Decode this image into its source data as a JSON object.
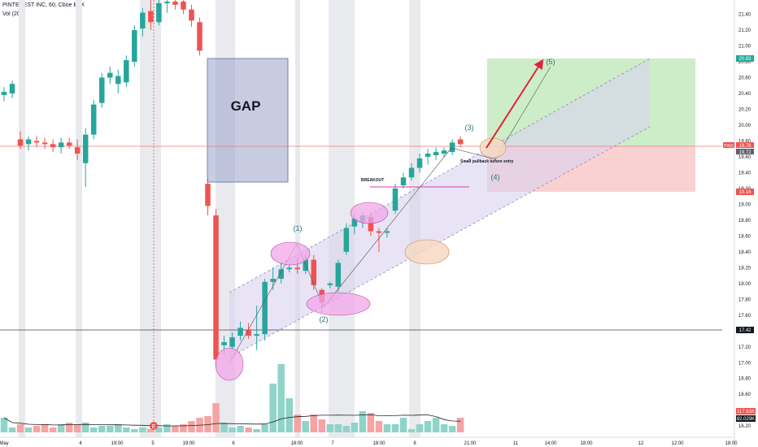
{
  "header": {
    "symbol": "PINTEREST INC, 60, Cboe BZX",
    "indicator": "Vol (20)"
  },
  "colors": {
    "up": "#26a69a",
    "down": "#ef5350",
    "vol_up": "#8fd3c9",
    "vol_down": "#f5a3a3",
    "session_shade": "#e9eaee",
    "gap_fill": "#9aa3cc",
    "channel_fill": "#d9d2ee",
    "target_fill": "#b8e6b0",
    "stop_fill": "#f8c2c2",
    "marker_pink": "#f2a5e8",
    "marker_peach": "#f6d9c2",
    "arrow": "#e0223a",
    "wave_text": "#2a6f7e"
  },
  "annotations": {
    "gap": "GAP",
    "breakout": "BREAKOUT",
    "pullback": "Small pullback before entry",
    "wave1": "(1)",
    "wave2": "(2)",
    "wave3": "(3)",
    "wave4": "(4)",
    "wave5": "(5)",
    "earnings_marker": "E"
  },
  "price_tags": {
    "target": "20.83",
    "last_symbol": "PINS",
    "last": "19.76",
    "entry": "19.72",
    "stop": "19.16",
    "support": "17.42",
    "vol_a": "117.81K",
    "vol_b": "82.029K"
  },
  "chart_data": {
    "type": "candlestick",
    "title": "PINTEREST INC, 60, Cboe BZX",
    "y_axis": {
      "range": [
        16.12,
        21.58
      ],
      "ticks": [
        "21.40",
        "21.20",
        "21.00",
        "20.80",
        "20.60",
        "20.40",
        "20.20",
        "20.00",
        "19.80",
        "19.60",
        "19.40",
        "19.20",
        "19.00",
        "18.80",
        "18.60",
        "18.40",
        "18.20",
        "18.00",
        "17.80",
        "17.60",
        "17.40",
        "17.20",
        "17.00",
        "16.80",
        "16.60",
        "16.40",
        "16.20"
      ]
    },
    "x_axis": {
      "ticks": [
        "May",
        "4",
        "19:00",
        "5",
        "19:00",
        "6",
        "18:00",
        "7",
        "18:00",
        "8",
        "21:00",
        "11",
        "14:00",
        "18:00",
        "12",
        "12:00",
        "18:00"
      ]
    },
    "candles": [
      {
        "o": 20.38,
        "h": 20.48,
        "l": 20.3,
        "c": 20.42
      },
      {
        "o": 20.4,
        "h": 20.56,
        "l": 20.34,
        "c": 20.52
      },
      {
        "o": 19.82,
        "h": 19.92,
        "l": 19.7,
        "c": 19.74
      },
      {
        "o": 19.76,
        "h": 19.86,
        "l": 19.68,
        "c": 19.82
      },
      {
        "o": 19.8,
        "h": 19.86,
        "l": 19.72,
        "c": 19.78
      },
      {
        "o": 19.78,
        "h": 19.84,
        "l": 19.7,
        "c": 19.76
      },
      {
        "o": 19.76,
        "h": 19.82,
        "l": 19.66,
        "c": 19.72
      },
      {
        "o": 19.72,
        "h": 19.84,
        "l": 19.64,
        "c": 19.78
      },
      {
        "o": 19.78,
        "h": 19.84,
        "l": 19.7,
        "c": 19.74
      },
      {
        "o": 19.72,
        "h": 19.82,
        "l": 19.56,
        "c": 19.64
      },
      {
        "o": 19.52,
        "h": 19.96,
        "l": 19.22,
        "c": 19.88
      },
      {
        "o": 19.88,
        "h": 20.32,
        "l": 19.82,
        "c": 20.26
      },
      {
        "o": 20.28,
        "h": 20.66,
        "l": 20.22,
        "c": 20.6
      },
      {
        "o": 20.6,
        "h": 20.74,
        "l": 20.52,
        "c": 20.66
      },
      {
        "o": 20.52,
        "h": 20.7,
        "l": 20.4,
        "c": 20.62
      },
      {
        "o": 20.54,
        "h": 20.88,
        "l": 20.48,
        "c": 20.82
      },
      {
        "o": 20.8,
        "h": 21.26,
        "l": 20.74,
        "c": 21.2
      },
      {
        "o": 21.22,
        "h": 21.48,
        "l": 21.12,
        "c": 21.42
      },
      {
        "o": 21.44,
        "h": 21.58,
        "l": 21.2,
        "c": 21.3
      },
      {
        "o": 21.3,
        "h": 21.62,
        "l": 21.26,
        "c": 21.54
      },
      {
        "o": 21.54,
        "h": 21.62,
        "l": 21.42,
        "c": 21.56
      },
      {
        "o": 21.56,
        "h": 21.62,
        "l": 21.46,
        "c": 21.52
      },
      {
        "o": 21.56,
        "h": 21.62,
        "l": 21.4,
        "c": 21.46
      },
      {
        "o": 21.46,
        "h": 21.52,
        "l": 21.24,
        "c": 21.32
      },
      {
        "o": 21.3,
        "h": 21.36,
        "l": 20.88,
        "c": 20.94
      },
      {
        "o": 19.26,
        "h": 19.32,
        "l": 18.86,
        "c": 18.98
      },
      {
        "o": 18.86,
        "h": 18.94,
        "l": 16.96,
        "c": 17.04
      },
      {
        "o": 17.22,
        "h": 17.34,
        "l": 17.1,
        "c": 17.26
      },
      {
        "o": 17.2,
        "h": 17.38,
        "l": 17.16,
        "c": 17.32
      },
      {
        "o": 17.34,
        "h": 17.52,
        "l": 17.28,
        "c": 17.44
      },
      {
        "o": 17.42,
        "h": 17.5,
        "l": 17.3,
        "c": 17.34
      },
      {
        "o": 17.34,
        "h": 17.72,
        "l": 17.16,
        "c": 17.36
      },
      {
        "o": 17.36,
        "h": 18.06,
        "l": 17.28,
        "c": 18.02
      },
      {
        "o": 18.02,
        "h": 18.2,
        "l": 17.92,
        "c": 18.06
      },
      {
        "o": 18.06,
        "h": 18.26,
        "l": 18.0,
        "c": 18.18
      },
      {
        "o": 18.18,
        "h": 18.24,
        "l": 18.14,
        "c": 18.2
      },
      {
        "o": 18.2,
        "h": 18.32,
        "l": 18.12,
        "c": 18.18
      },
      {
        "o": 18.16,
        "h": 18.36,
        "l": 18.12,
        "c": 18.3
      },
      {
        "o": 18.3,
        "h": 18.36,
        "l": 17.92,
        "c": 17.98
      },
      {
        "o": 17.92,
        "h": 17.94,
        "l": 17.64,
        "c": 17.76
      },
      {
        "o": 17.98,
        "h": 18.02,
        "l": 17.94,
        "c": 18.0
      },
      {
        "o": 17.96,
        "h": 18.3,
        "l": 17.9,
        "c": 18.26
      },
      {
        "o": 18.4,
        "h": 18.76,
        "l": 18.36,
        "c": 18.7
      },
      {
        "o": 18.72,
        "h": 18.88,
        "l": 18.62,
        "c": 18.82
      },
      {
        "o": 18.78,
        "h": 18.9,
        "l": 18.7,
        "c": 18.86
      },
      {
        "o": 18.84,
        "h": 18.9,
        "l": 18.6,
        "c": 18.66
      },
      {
        "o": 18.66,
        "h": 18.7,
        "l": 18.4,
        "c": 18.64
      },
      {
        "o": 18.64,
        "h": 18.7,
        "l": 18.58,
        "c": 18.66
      },
      {
        "o": 18.92,
        "h": 19.26,
        "l": 18.88,
        "c": 19.2
      },
      {
        "o": 19.24,
        "h": 19.4,
        "l": 19.2,
        "c": 19.34
      },
      {
        "o": 19.34,
        "h": 19.52,
        "l": 19.3,
        "c": 19.46
      },
      {
        "o": 19.46,
        "h": 19.64,
        "l": 19.4,
        "c": 19.58
      },
      {
        "o": 19.6,
        "h": 19.7,
        "l": 19.5,
        "c": 19.64
      },
      {
        "o": 19.62,
        "h": 19.72,
        "l": 19.56,
        "c": 19.66
      },
      {
        "o": 19.64,
        "h": 19.72,
        "l": 19.6,
        "c": 19.68
      },
      {
        "o": 19.66,
        "h": 19.82,
        "l": 19.62,
        "c": 19.78
      },
      {
        "o": 19.82,
        "h": 19.86,
        "l": 19.72,
        "c": 19.76
      }
    ],
    "volumes": [
      18,
      6,
      10,
      6,
      8,
      10,
      6,
      10,
      12,
      10,
      12,
      6,
      8,
      8,
      10,
      6,
      4,
      6,
      4,
      6,
      10,
      8,
      10,
      14,
      18,
      20,
      36,
      12,
      6,
      8,
      6,
      4,
      10,
      60,
      84,
      42,
      22,
      14,
      22,
      16,
      10,
      10,
      8,
      12,
      26,
      24,
      14,
      10,
      10,
      18,
      4,
      10,
      14,
      18,
      10,
      8,
      18
    ],
    "levels": {
      "entry": 19.72,
      "target": 20.83,
      "stop": 19.16,
      "support": 17.42
    }
  }
}
